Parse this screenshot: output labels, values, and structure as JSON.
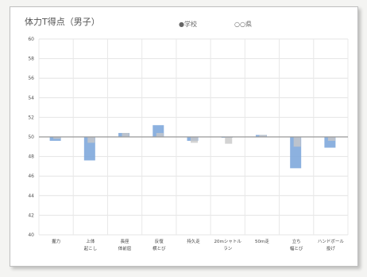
{
  "chart_data": {
    "type": "bar",
    "title": "体力T得点（男子）",
    "legend": [
      {
        "label": "●学校",
        "color": "#7fa8dc"
      },
      {
        "label": "○○県",
        "color": "#bbbbbb"
      }
    ],
    "ylim": [
      40,
      60
    ],
    "yticks": [
      40,
      42,
      44,
      46,
      48,
      50,
      52,
      54,
      56,
      58,
      60
    ],
    "baseline": 50,
    "categories": [
      [
        "握力"
      ],
      [
        "上体",
        "起こし"
      ],
      [
        "長座",
        "体前屈"
      ],
      [
        "反復",
        "横とび"
      ],
      [
        "持久走"
      ],
      [
        "20mシャトル",
        "ラン"
      ],
      [
        "50m走"
      ],
      [
        "立ち",
        "幅とび"
      ],
      [
        "ハンドボール",
        "投げ"
      ]
    ],
    "series": [
      {
        "name": "学校",
        "color": "#7fa8dc",
        "values": [
          49.6,
          47.6,
          50.4,
          51.2,
          49.6,
          50.0,
          50.2,
          46.8,
          48.9
        ]
      },
      {
        "name": "○○県",
        "color": "#c8c8c8",
        "values": [
          49.8,
          49.4,
          50.4,
          50.4,
          49.4,
          49.3,
          50.2,
          49.0,
          49.6
        ]
      }
    ],
    "grid": true
  }
}
